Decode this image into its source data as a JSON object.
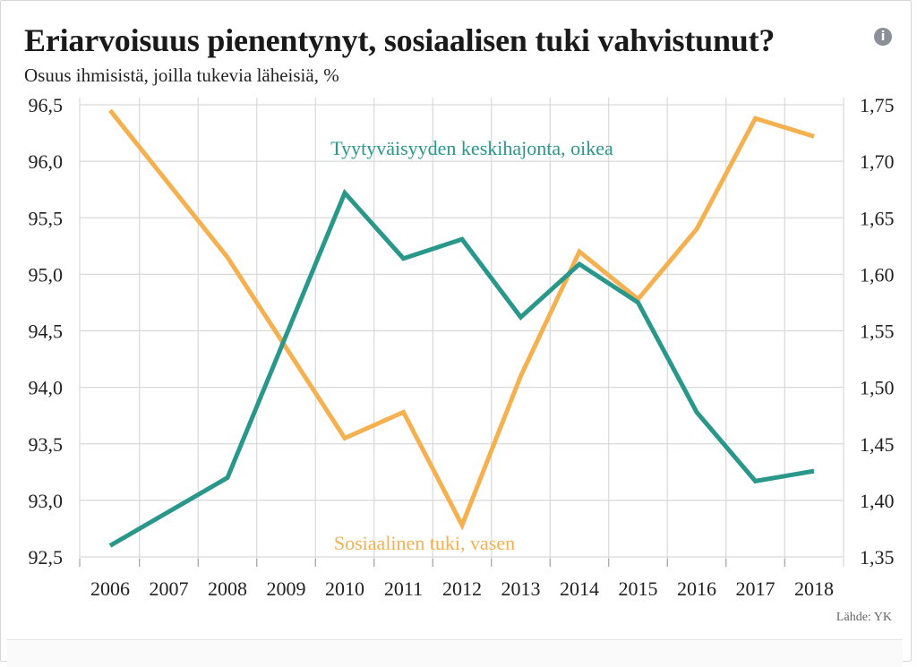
{
  "header": {
    "title": "Eriarvoisuus pienentynyt, sosiaalisen tuki vahvistunut?",
    "subtitle": "Osuus ihmisistä, joilla tukevia läheisiä, %",
    "info_icon": "info-icon",
    "info_glyph": "i"
  },
  "footer": {
    "source": "Lähde: YK"
  },
  "chart_data": {
    "type": "line",
    "x": [
      "2006",
      "2007",
      "2008",
      "2009",
      "2010",
      "2011",
      "2012",
      "2013",
      "2014",
      "2015",
      "2016",
      "2017",
      "2018"
    ],
    "y_left": {
      "ticks": [
        "92,5",
        "93,0",
        "93,5",
        "94,0",
        "94,5",
        "95,0",
        "95,5",
        "96,0",
        "96,5"
      ],
      "range": [
        92.5,
        96.5
      ]
    },
    "y_right": {
      "ticks": [
        "1,35",
        "1,40",
        "1,45",
        "1,50",
        "1,55",
        "1,60",
        "1,65",
        "1,70",
        "1,75"
      ],
      "range": [
        1.35,
        1.75
      ]
    },
    "grid": true,
    "series": [
      {
        "name": "Sosiaalinen tuki, vasen",
        "axis": "left",
        "color": "#f5b14f",
        "x": [
          2006.5,
          2008.5,
          2010.5,
          2011.5,
          2012.5,
          2013.5,
          2014.5,
          2015.5,
          2016.5,
          2017.5,
          2018.5
        ],
        "values": [
          96.45,
          95.15,
          93.55,
          93.78,
          92.78,
          94.1,
          95.2,
          94.78,
          95.4,
          96.38,
          96.22
        ]
      },
      {
        "name": "Tyytyväisyyden keskihajonta, oikea",
        "axis": "right",
        "color": "#2a978b",
        "x": [
          2006.5,
          2008.5,
          2010.5,
          2011.5,
          2012.5,
          2013.5,
          2014.5,
          2015.5,
          2016.5,
          2017.5,
          2018.5
        ],
        "values": [
          1.36,
          1.42,
          1.672,
          1.614,
          1.631,
          1.562,
          1.609,
          1.575,
          1.478,
          1.417,
          1.426
        ]
      }
    ]
  }
}
